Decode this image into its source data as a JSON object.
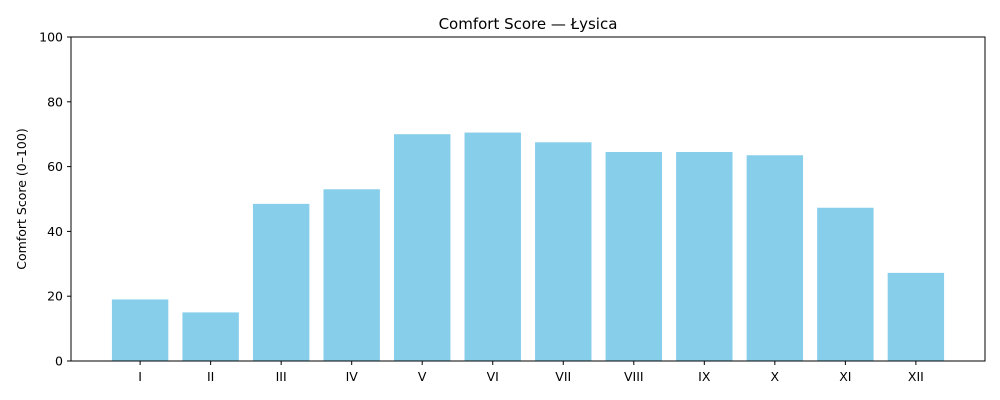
{
  "chart_data": {
    "type": "bar",
    "title": "Comfort Score — Łysica",
    "xlabel": "",
    "ylabel": "Comfort Score (0–100)",
    "ylim": [
      0,
      100
    ],
    "yticks": [
      0,
      20,
      40,
      60,
      80,
      100
    ],
    "categories": [
      "I",
      "II",
      "III",
      "IV",
      "V",
      "VI",
      "VII",
      "VIII",
      "IX",
      "X",
      "XI",
      "XII"
    ],
    "values": [
      19,
      15,
      48.5,
      53,
      70,
      70.5,
      67.5,
      64.5,
      64.5,
      63.5,
      47.3,
      27.2
    ],
    "bar_color": "#87ceeb",
    "grid": false,
    "legend": "none"
  }
}
